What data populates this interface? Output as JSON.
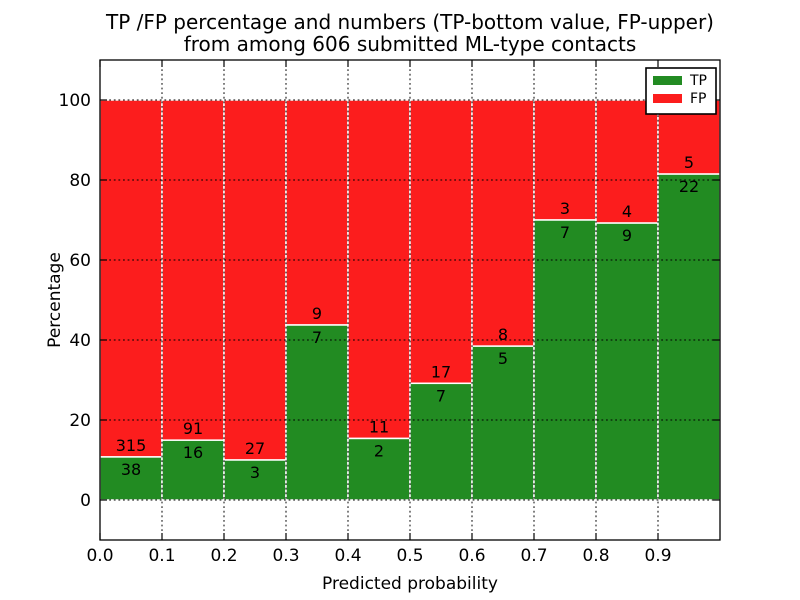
{
  "chart_data": {
    "type": "bar",
    "stacked": true,
    "orientation": "vertical",
    "title": "TP /FP percentage and numbers (TP-bottom value, FP-upper)",
    "subtitle": "from among 606 submitted ML-type contacts",
    "xlabel": "Predicted probability",
    "ylabel": "Percentage",
    "xlim": [
      0.0,
      1.0
    ],
    "ylim": [
      -10,
      110
    ],
    "xticks": [
      "0.0",
      "0.1",
      "0.2",
      "0.3",
      "0.4",
      "0.5",
      "0.6",
      "0.7",
      "0.8",
      "0.9"
    ],
    "yticks": [
      0,
      20,
      40,
      60,
      80,
      100
    ],
    "grid": "dotted-black",
    "background": "#ffffff",
    "total_contacts": 606,
    "bin_width": 0.1,
    "categories": [
      "0.0-0.1",
      "0.1-0.2",
      "0.2-0.3",
      "0.3-0.4",
      "0.4-0.5",
      "0.5-0.6",
      "0.6-0.7",
      "0.7-0.8",
      "0.8-0.9",
      "0.9-1.0"
    ],
    "series": [
      {
        "name": "TP",
        "color": "#228b22",
        "counts": [
          38,
          16,
          3,
          7,
          2,
          7,
          5,
          7,
          9,
          22
        ]
      },
      {
        "name": "FP",
        "color": "#fc1d1d",
        "counts": [
          315,
          91,
          27,
          9,
          11,
          17,
          8,
          3,
          4,
          5
        ]
      }
    ],
    "tp_percentages": [
      10.8,
      15.0,
      10.0,
      43.8,
      15.4,
      29.2,
      38.5,
      70.0,
      69.2,
      81.5
    ],
    "legend": {
      "position": "upper right",
      "entries": [
        "TP",
        "FP"
      ]
    }
  }
}
